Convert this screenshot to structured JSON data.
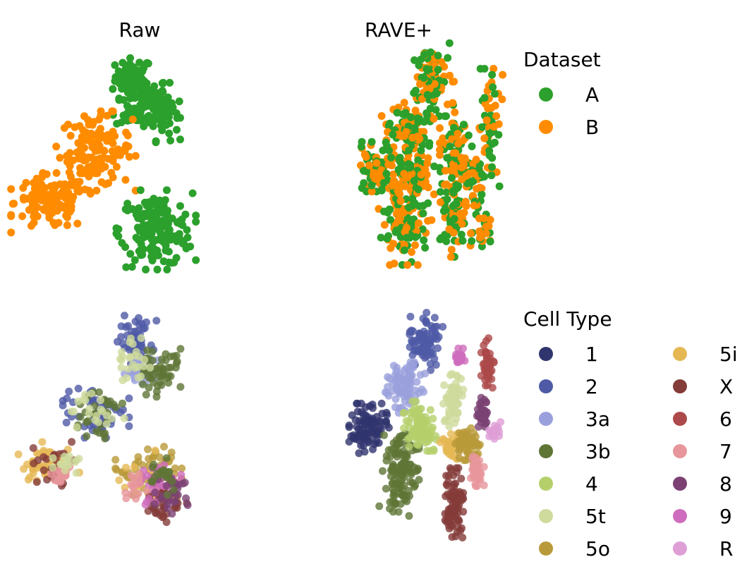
{
  "colors": {
    "A": "#2ca02c",
    "B": "#ff8c00"
  },
  "chart_data": [
    {
      "type": "scatter",
      "title": "Raw",
      "panel": "top-left",
      "color_by": "Dataset",
      "clusters": [
        {
          "group": "A",
          "cx": 0.2,
          "cy": 0.88,
          "sx": 0.06,
          "sy": 0.04,
          "n": 60
        },
        {
          "group": "A",
          "cx": 0.26,
          "cy": 0.76,
          "sx": 0.09,
          "sy": 0.06,
          "n": 110
        },
        {
          "group": "A",
          "cx": 0.4,
          "cy": 0.72,
          "sx": 0.05,
          "sy": 0.06,
          "n": 50
        },
        {
          "group": "B",
          "cx": -0.05,
          "cy": 0.55,
          "sx": 0.12,
          "sy": 0.08,
          "n": 130
        },
        {
          "group": "B",
          "cx": -0.35,
          "cy": 0.32,
          "sx": 0.12,
          "sy": 0.06,
          "n": 120
        },
        {
          "group": "A",
          "cx": 0.35,
          "cy": 0.2,
          "sx": 0.12,
          "sy": 0.08,
          "n": 170
        }
      ]
    },
    {
      "type": "scatter",
      "title": "RAVE+",
      "panel": "top-right",
      "color_by": "Dataset",
      "clusters": [
        {
          "group": "mix",
          "cx": 0.45,
          "cy": 0.88,
          "sx": 0.07,
          "sy": 0.08,
          "n": 90
        },
        {
          "group": "mix",
          "cx": 0.3,
          "cy": 0.62,
          "sx": 0.08,
          "sy": 0.07,
          "n": 90
        },
        {
          "group": "mix",
          "cx": 0.1,
          "cy": 0.48,
          "sx": 0.07,
          "sy": 0.05,
          "n": 70
        },
        {
          "group": "mix",
          "cx": 0.3,
          "cy": 0.42,
          "sx": 0.08,
          "sy": 0.06,
          "n": 90
        },
        {
          "group": "mix",
          "cx": 0.28,
          "cy": 0.22,
          "sx": 0.08,
          "sy": 0.08,
          "n": 110
        },
        {
          "group": "mix",
          "cx": 0.62,
          "cy": 0.58,
          "sx": 0.05,
          "sy": 0.08,
          "n": 60
        },
        {
          "group": "mix",
          "cx": 0.6,
          "cy": 0.3,
          "sx": 0.04,
          "sy": 0.1,
          "n": 80
        },
        {
          "group": "mix",
          "cx": 0.73,
          "cy": 0.4,
          "sx": 0.04,
          "sy": 0.06,
          "n": 50
        },
        {
          "group": "mix",
          "cx": 0.84,
          "cy": 0.65,
          "sx": 0.04,
          "sy": 0.12,
          "n": 60
        },
        {
          "group": "mix",
          "cx": 0.78,
          "cy": 0.2,
          "sx": 0.03,
          "sy": 0.05,
          "n": 25
        }
      ]
    },
    {
      "type": "scatter",
      "title": "",
      "panel": "bottom-left",
      "color_by": "Cell Type",
      "clusters": [
        {
          "group": "2",
          "cx": 0.22,
          "cy": 0.86,
          "sx": 0.06,
          "sy": 0.05,
          "n": 50
        },
        {
          "group": "3a",
          "cx": 0.25,
          "cy": 0.74,
          "sx": 0.06,
          "sy": 0.04,
          "n": 40
        },
        {
          "group": "3b",
          "cx": 0.38,
          "cy": 0.72,
          "sx": 0.06,
          "sy": 0.05,
          "n": 50
        },
        {
          "group": "5t",
          "cx": 0.2,
          "cy": 0.76,
          "sx": 0.05,
          "sy": 0.05,
          "n": 25
        },
        {
          "group": "2",
          "cx": -0.05,
          "cy": 0.56,
          "sx": 0.1,
          "sy": 0.06,
          "n": 50
        },
        {
          "group": "3b",
          "cx": -0.05,
          "cy": 0.52,
          "sx": 0.08,
          "sy": 0.05,
          "n": 30
        },
        {
          "group": "5t",
          "cx": -0.05,
          "cy": 0.54,
          "sx": 0.09,
          "sy": 0.05,
          "n": 20
        },
        {
          "group": "5i",
          "cx": -0.38,
          "cy": 0.32,
          "sx": 0.1,
          "sy": 0.05,
          "n": 50
        },
        {
          "group": "X",
          "cx": -0.35,
          "cy": 0.3,
          "sx": 0.1,
          "sy": 0.05,
          "n": 25
        },
        {
          "group": "7",
          "cx": -0.28,
          "cy": 0.26,
          "sx": 0.05,
          "sy": 0.03,
          "n": 20
        },
        {
          "group": "5t",
          "cx": -0.25,
          "cy": 0.33,
          "sx": 0.06,
          "sy": 0.03,
          "n": 15
        },
        {
          "group": "5o",
          "cx": 0.3,
          "cy": 0.28,
          "sx": 0.1,
          "sy": 0.06,
          "n": 50
        },
        {
          "group": "5i",
          "cx": 0.28,
          "cy": 0.24,
          "sx": 0.08,
          "sy": 0.06,
          "n": 25
        },
        {
          "group": "X",
          "cx": 0.4,
          "cy": 0.16,
          "sx": 0.07,
          "sy": 0.05,
          "n": 45
        },
        {
          "group": "9",
          "cx": 0.34,
          "cy": 0.22,
          "sx": 0.08,
          "sy": 0.04,
          "n": 30
        },
        {
          "group": "7",
          "cx": 0.2,
          "cy": 0.2,
          "sx": 0.04,
          "sy": 0.03,
          "n": 15
        },
        {
          "group": "8",
          "cx": 0.45,
          "cy": 0.18,
          "sx": 0.05,
          "sy": 0.04,
          "n": 25
        },
        {
          "group": "3b",
          "cx": 0.36,
          "cy": 0.26,
          "sx": 0.06,
          "sy": 0.04,
          "n": 20
        }
      ]
    },
    {
      "type": "scatter",
      "title": "",
      "panel": "bottom-right",
      "color_by": "Cell Type",
      "clusters": [
        {
          "group": "2",
          "cx": 0.42,
          "cy": 0.86,
          "sx": 0.05,
          "sy": 0.06,
          "n": 80
        },
        {
          "group": "3a",
          "cx": 0.28,
          "cy": 0.66,
          "sx": 0.06,
          "sy": 0.06,
          "n": 80
        },
        {
          "group": "1",
          "cx": 0.04,
          "cy": 0.47,
          "sx": 0.06,
          "sy": 0.05,
          "n": 90
        },
        {
          "group": "3b",
          "cx": 0.24,
          "cy": 0.28,
          "sx": 0.06,
          "sy": 0.09,
          "n": 120
        },
        {
          "group": "4",
          "cx": 0.38,
          "cy": 0.48,
          "sx": 0.05,
          "sy": 0.05,
          "n": 90
        },
        {
          "group": "5t",
          "cx": 0.6,
          "cy": 0.6,
          "sx": 0.03,
          "sy": 0.06,
          "n": 60
        },
        {
          "group": "5i",
          "cx": 0.58,
          "cy": 0.4,
          "sx": 0.03,
          "sy": 0.03,
          "n": 30
        },
        {
          "group": "5o",
          "cx": 0.7,
          "cy": 0.4,
          "sx": 0.04,
          "sy": 0.04,
          "n": 60
        },
        {
          "group": "X",
          "cx": 0.6,
          "cy": 0.14,
          "sx": 0.03,
          "sy": 0.07,
          "n": 90
        },
        {
          "group": "9",
          "cx": 0.64,
          "cy": 0.78,
          "sx": 0.02,
          "sy": 0.02,
          "n": 30
        },
        {
          "group": "6",
          "cx": 0.83,
          "cy": 0.76,
          "sx": 0.02,
          "sy": 0.05,
          "n": 40
        },
        {
          "group": "8",
          "cx": 0.8,
          "cy": 0.54,
          "sx": 0.02,
          "sy": 0.03,
          "n": 40
        },
        {
          "group": "R",
          "cx": 0.87,
          "cy": 0.46,
          "sx": 0.02,
          "sy": 0.02,
          "n": 20
        },
        {
          "group": "7",
          "cx": 0.76,
          "cy": 0.28,
          "sx": 0.02,
          "sy": 0.03,
          "n": 40
        }
      ]
    }
  ],
  "legend_dataset": {
    "title": "Dataset",
    "items": [
      {
        "label": "A",
        "color": "#2ca02c"
      },
      {
        "label": "B",
        "color": "#ff8c00"
      }
    ]
  },
  "legend_celltype": {
    "title": "Cell Type",
    "items": [
      {
        "label": "1",
        "color": "#31356e"
      },
      {
        "label": "2",
        "color": "#4f5aa6"
      },
      {
        "label": "3a",
        "color": "#9aa0dc"
      },
      {
        "label": "3b",
        "color": "#5f7536"
      },
      {
        "label": "4",
        "color": "#b5cf6b"
      },
      {
        "label": "5t",
        "color": "#cedb9c"
      },
      {
        "label": "5o",
        "color": "#b99a3a"
      },
      {
        "label": "5i",
        "color": "#e6b854"
      },
      {
        "label": "X",
        "color": "#843c39"
      },
      {
        "label": "6",
        "color": "#ad494a"
      },
      {
        "label": "7",
        "color": "#e7969c"
      },
      {
        "label": "8",
        "color": "#7b4173"
      },
      {
        "label": "9",
        "color": "#ce6dbd"
      },
      {
        "label": "R",
        "color": "#de9ed6"
      }
    ]
  }
}
